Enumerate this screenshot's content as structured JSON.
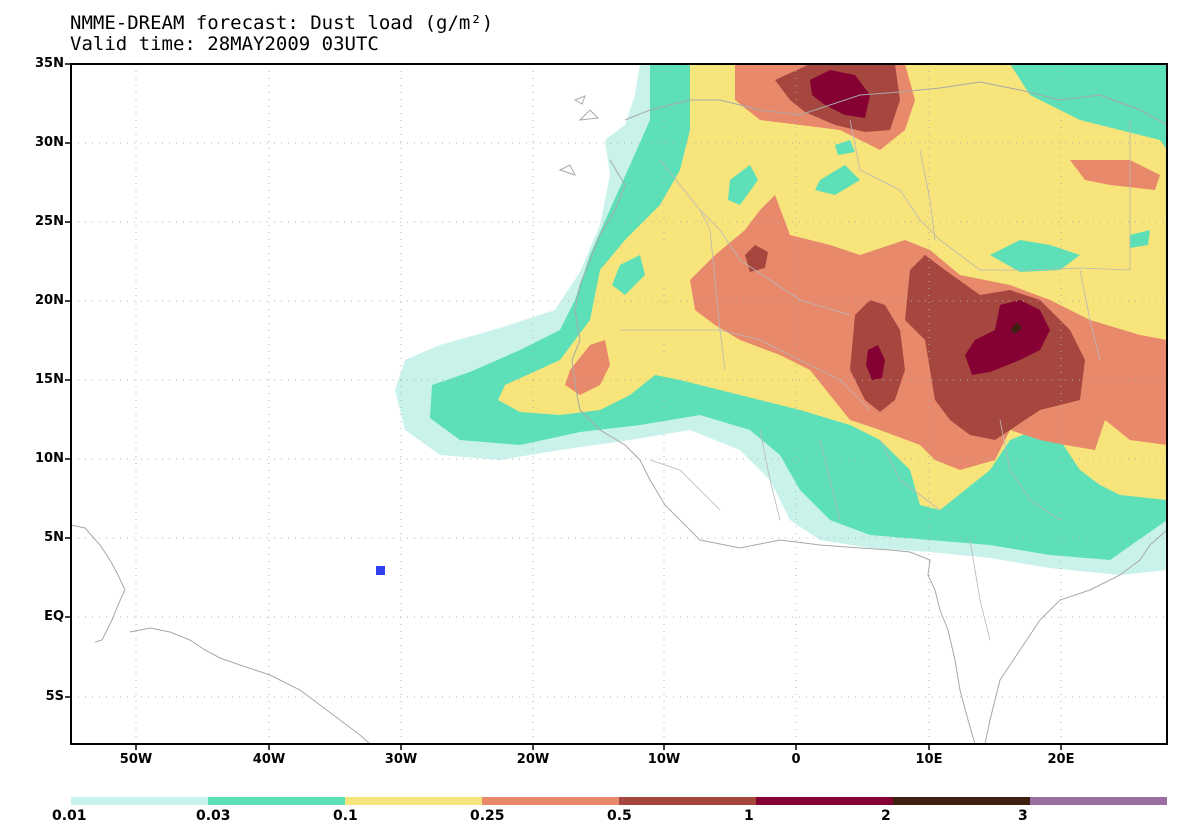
{
  "title": {
    "line1": "NMME-DREAM forecast: Dust load (g/m²)",
    "line2": "Valid time: 28MAY2009 03UTC"
  },
  "axes": {
    "lat_labels": [
      "35N",
      "30N",
      "25N",
      "20N",
      "15N",
      "10N",
      "5N",
      "EQ",
      "5S"
    ],
    "lon_labels": [
      "50W",
      "40W",
      "30W",
      "20W",
      "10W",
      "0",
      "10E",
      "20E"
    ]
  },
  "colorbar": {
    "labels": [
      "0.01",
      "0.03",
      "0.1",
      "0.25",
      "0.5",
      "1",
      "2",
      "3"
    ],
    "colors": [
      "#c8f2ea",
      "#5de0b8",
      "#f7e47a",
      "#e9896b",
      "#a5473e",
      "#850033",
      "#3e1f10",
      "#9a6ea0"
    ]
  },
  "palette": {
    "land_outline": "#a8a8a8",
    "grid": "#b0b0b0",
    "marker": "#2f40f0"
  }
}
